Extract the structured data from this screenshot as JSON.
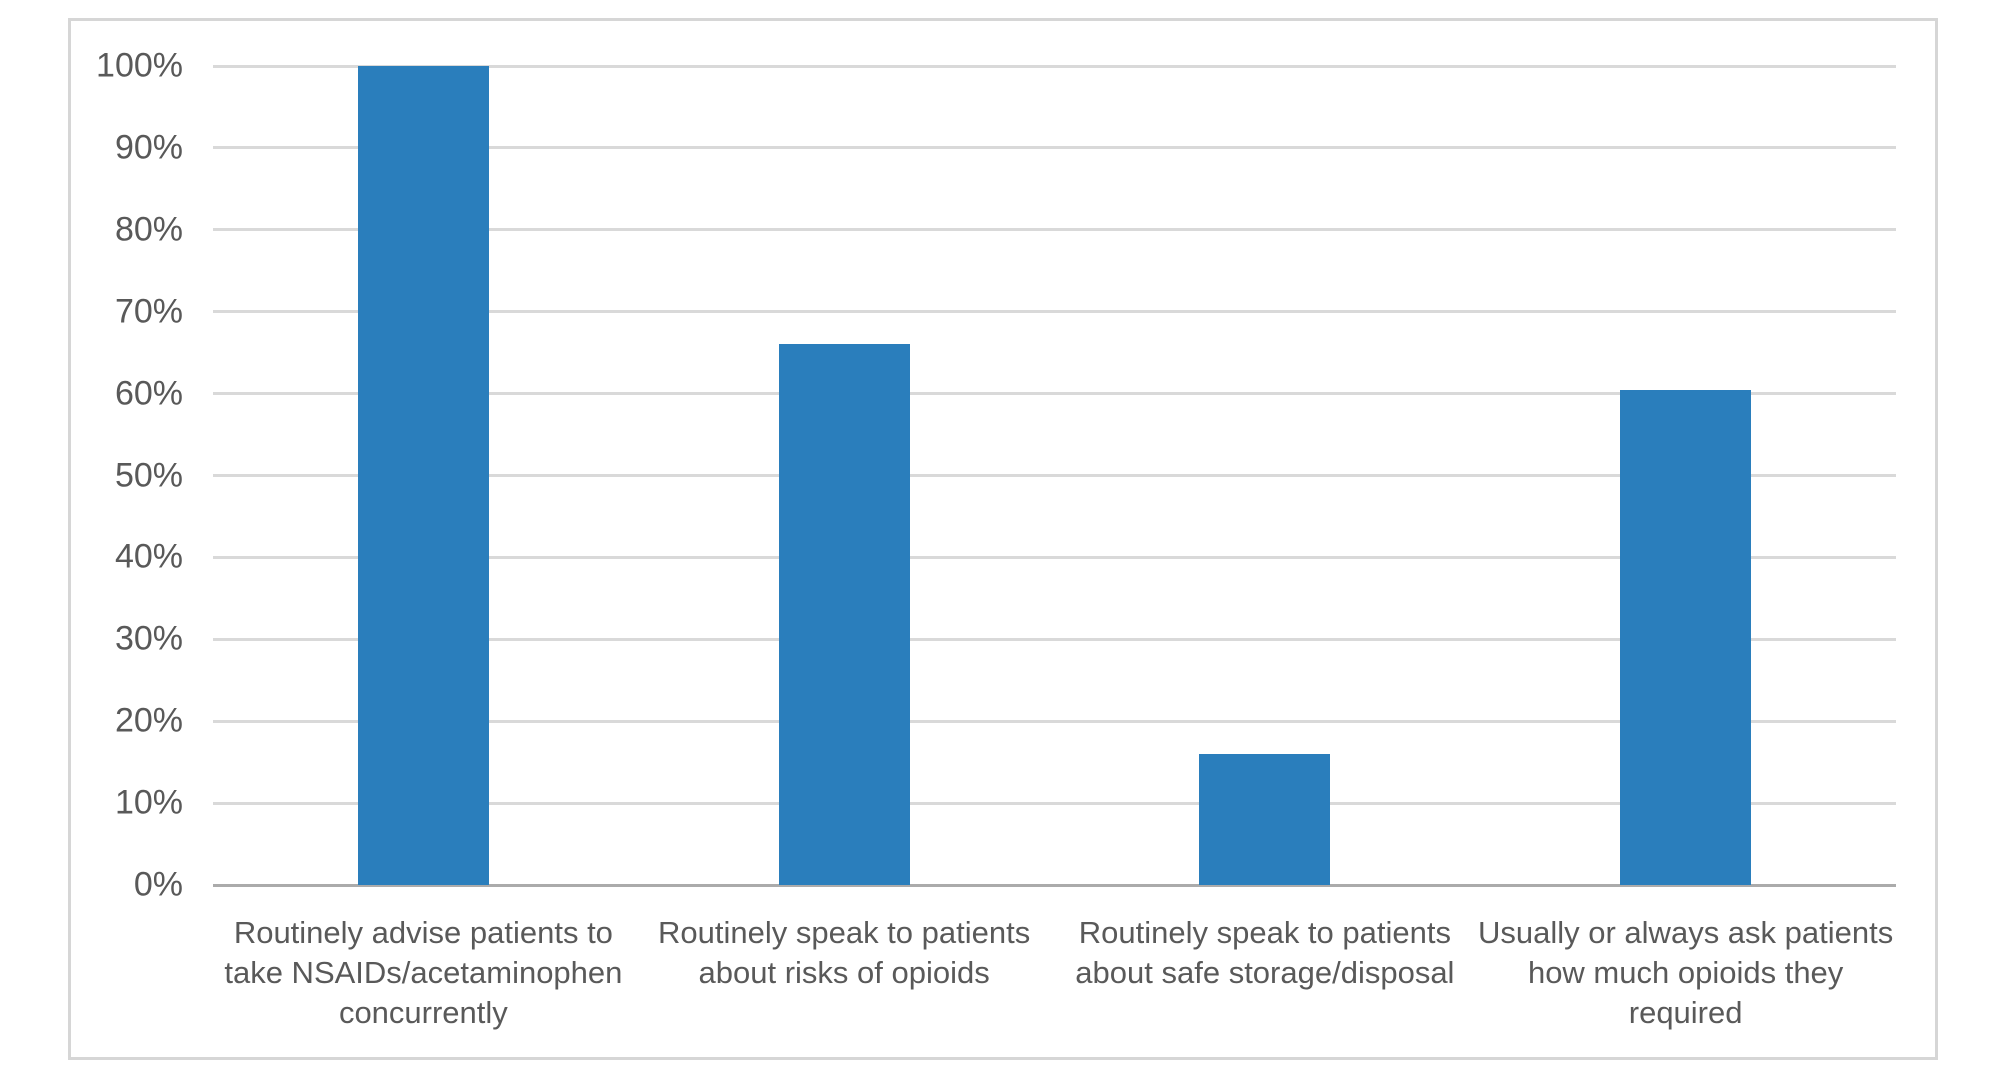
{
  "chart_data": {
    "type": "bar",
    "title": "",
    "xlabel": "",
    "ylabel": "",
    "categories": [
      "Routinely advise patients to take NSAIDs/acetaminophen concurrently",
      "Routinely speak to patients about risks of opioids",
      "Routinely speak to patients about safe storage/disposal",
      "Usually or always ask patients how much opioids they required"
    ],
    "values": [
      100,
      66,
      16,
      60.5
    ],
    "value_unit": "%",
    "ylim": [
      0,
      100
    ],
    "ytick_step": 10,
    "ytick_labels": [
      "0%",
      "10%",
      "20%",
      "30%",
      "40%",
      "50%",
      "60%",
      "70%",
      "80%",
      "90%",
      "100%"
    ],
    "grid": true,
    "legend": false,
    "bar_color": "#2a7ebc",
    "gridline_color": "#d9d9d9",
    "axis_line_color": "#ababab",
    "tick_label_color": "#595959",
    "frame_border_color": "#d6d6d6",
    "background_color": "#ffffff"
  }
}
